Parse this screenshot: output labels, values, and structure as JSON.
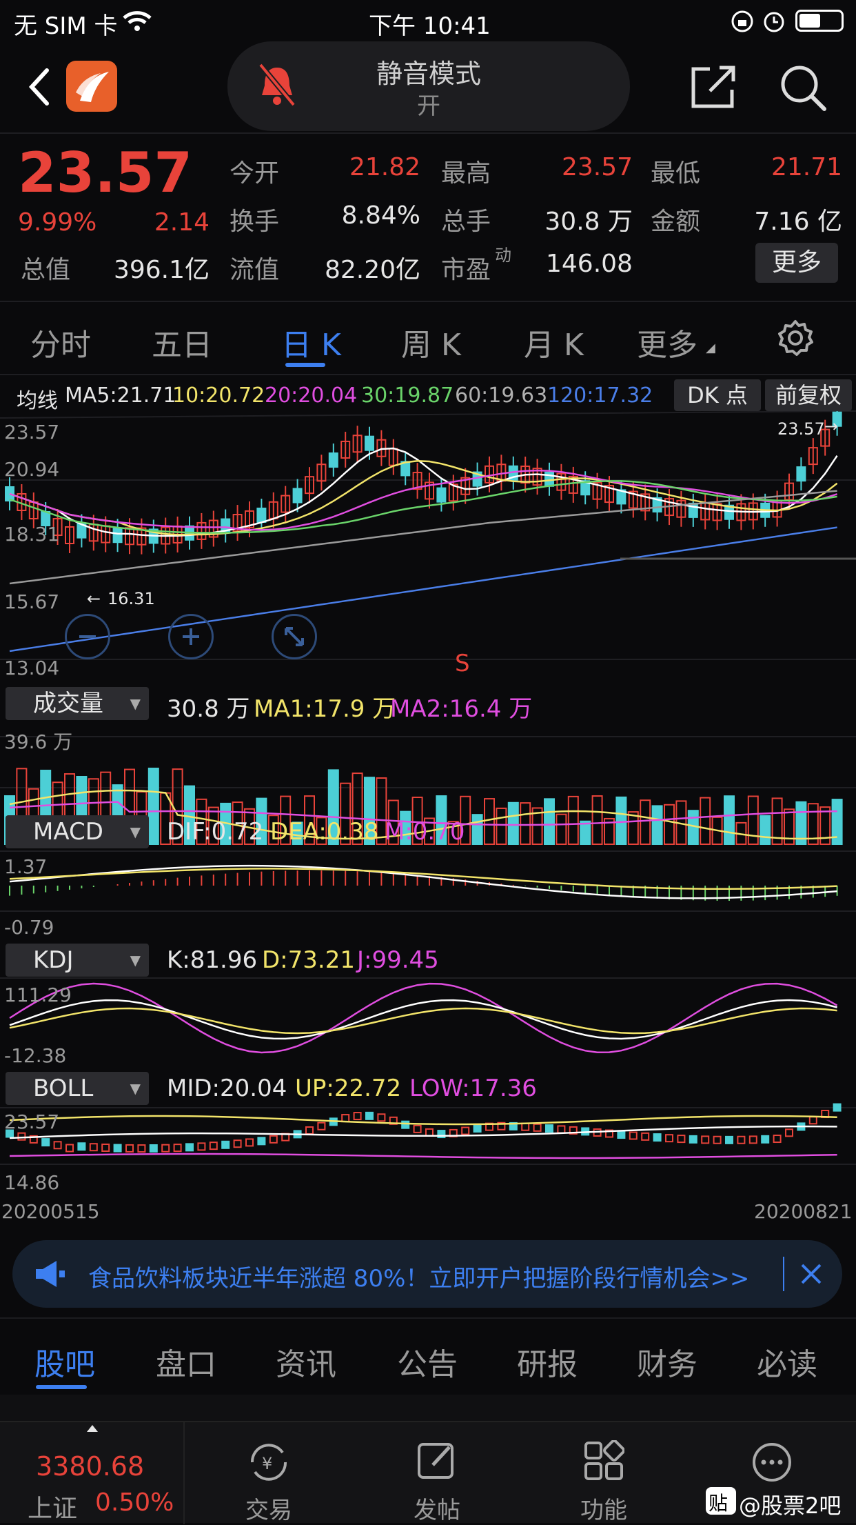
{
  "status": {
    "carrier": "无 SIM 卡",
    "time": "下午 10:41"
  },
  "nav": {
    "mute_title": "静音模式",
    "mute_state": "开"
  },
  "quote": {
    "price": "23.57",
    "pct": "9.99%",
    "chg": "2.14",
    "row1": [
      {
        "label": "今开",
        "value": "21.82"
      },
      {
        "label": "最高",
        "value": "23.57"
      },
      {
        "label": "最低",
        "value": "21.71"
      }
    ],
    "row2": [
      {
        "label": "换手",
        "value": "8.84%"
      },
      {
        "label": "总手",
        "value": "30.8 万"
      },
      {
        "label": "金额",
        "value": "7.16 亿"
      }
    ],
    "row3": [
      {
        "label": "总值",
        "value": "396.1亿"
      },
      {
        "label": "流值",
        "value": "82.20亿"
      },
      {
        "label": "市盈",
        "sup": "动",
        "value": "146.08"
      }
    ],
    "more": "更多"
  },
  "tabs": [
    "分时",
    "五日",
    "日 K",
    "周 K",
    "月 K",
    "更多"
  ],
  "ma_bar": {
    "label": "均线",
    "ma5": "MA5:21.71",
    "ma10": "10:20.72",
    "ma20": "20:20.04",
    "ma30": "30:19.87",
    "ma60": "60:19.63",
    "ma120": "120:17.32",
    "dk": "DK 点",
    "fq": "前复权"
  },
  "kline": {
    "y_labels": [
      "23.57",
      "20.94",
      "18.31",
      "15.67",
      "13.04"
    ],
    "max_label": "23.57",
    "min_label": "16.31",
    "signal": "S"
  },
  "volume": {
    "selector": "成交量",
    "value": "30.8 万",
    "ma1": "MA1:17.9 万",
    "ma2": "MA2:16.4 万",
    "max_label": "39.6 万"
  },
  "macd": {
    "selector": "MACD",
    "dif": "DIF:0.72",
    "dea": "DEA:0.38",
    "m": "M:0.70",
    "top": "1.37",
    "bottom": "-0.79"
  },
  "kdj": {
    "selector": "KDJ",
    "k": "K:81.96",
    "d": "D:73.21",
    "j": "J:99.45",
    "top": "111.29",
    "bottom": "-12.38"
  },
  "boll": {
    "selector": "BOLL",
    "mid": "MID:20.04",
    "up": "UP:22.72",
    "low": "LOW:17.36",
    "top": "23.57",
    "bottom": "14.86"
  },
  "dates": {
    "start": "20200515",
    "end": "20200821"
  },
  "banner": {
    "text": "食品饮料板块近半年涨超 80%！立即开户把握阶段行情机会>>"
  },
  "subtabs": [
    "股吧",
    "盘口",
    "资讯",
    "公告",
    "研报",
    "财务",
    "必读"
  ],
  "tabbar": {
    "index_value": "3380.68",
    "index_name": "上证",
    "index_pct": "0.50%",
    "items": [
      "交易",
      "发帖",
      "功能"
    ],
    "watermark": "@股票2吧"
  },
  "colors": {
    "up": "#e8433a",
    "down": "#4ccfd6",
    "accent": "#3d7ff0",
    "yellow": "#f2e46a",
    "magenta": "#e04ee0"
  }
}
